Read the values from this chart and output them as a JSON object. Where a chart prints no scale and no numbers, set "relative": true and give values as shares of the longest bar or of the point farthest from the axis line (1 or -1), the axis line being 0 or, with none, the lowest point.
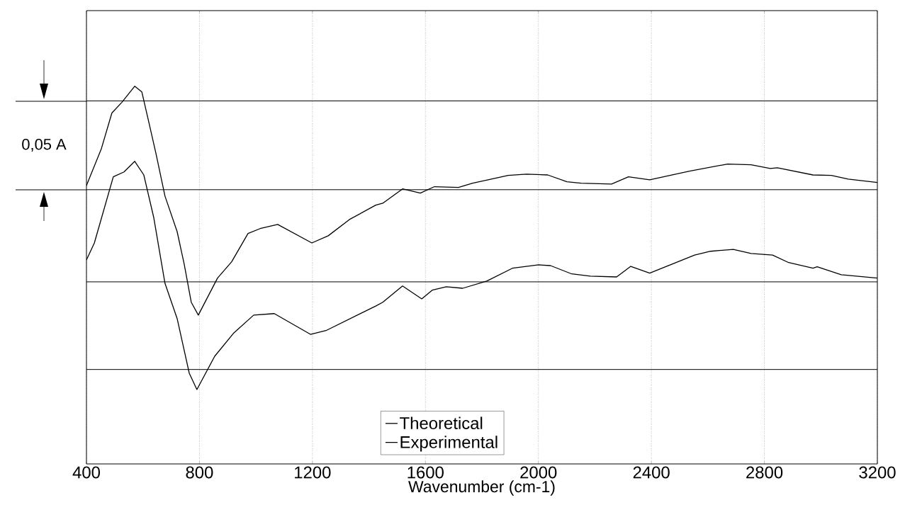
{
  "chart_data": {
    "type": "line",
    "relative": true,
    "xlabel": "Wavenumber (cm-1)",
    "xlim": [
      400,
      3200
    ],
    "xticks": [
      400,
      800,
      1200,
      1600,
      2000,
      2400,
      2800,
      3200
    ],
    "grid": "x",
    "legend": "bottom",
    "annotations": [
      "0,05 A"
    ],
    "ref_lines": [
      {
        "axis": "y",
        "value": 0.961,
        "color": "#000000"
      },
      {
        "axis": "y",
        "value": 0.726,
        "color": "#000000"
      },
      {
        "axis": "y",
        "value": 0.482,
        "color": "#000000"
      },
      {
        "axis": "y",
        "value": 0.25,
        "color": "#000000"
      }
    ],
    "series": [
      {
        "name": "Theoretical",
        "color": "#000000",
        "x": [
          400,
          453,
          490,
          525,
          571,
          596,
          621,
          646,
          678,
          721,
          746,
          771,
          796,
          864,
          914,
          972,
          1015,
          1077,
          1198,
          1256,
          1331,
          1424,
          1449,
          1519,
          1582,
          1632,
          1717,
          1767,
          1893,
          1958,
          2033,
          2101,
          2151,
          2259,
          2319,
          2394,
          2535,
          2670,
          2753,
          2821,
          2846,
          2972,
          3037,
          3097,
          3200
        ],
        "values": [
          0.737,
          0.835,
          0.929,
          0.957,
          1.0,
          0.985,
          0.904,
          0.822,
          0.709,
          0.615,
          0.529,
          0.428,
          0.394,
          0.492,
          0.535,
          0.61,
          0.623,
          0.634,
          0.585,
          0.604,
          0.647,
          0.685,
          0.69,
          0.728,
          0.717,
          0.734,
          0.732,
          0.743,
          0.764,
          0.767,
          0.765,
          0.747,
          0.743,
          0.741,
          0.76,
          0.752,
          0.775,
          0.794,
          0.792,
          0.782,
          0.784,
          0.765,
          0.764,
          0.754,
          0.745
        ]
      },
      {
        "name": "Experimental",
        "color": "#000000",
        "x": [
          400,
          428,
          495,
          533,
          571,
          603,
          638,
          678,
          721,
          764,
          791,
          854,
          922,
          992,
          1065,
          1193,
          1248,
          1424,
          1449,
          1519,
          1587,
          1624,
          1674,
          1732,
          1817,
          1908,
          2001,
          2043,
          2118,
          2184,
          2277,
          2327,
          2394,
          2553,
          2610,
          2690,
          2753,
          2829,
          2886,
          2972,
          2987,
          3072,
          3200
        ],
        "values": [
          0.54,
          0.585,
          0.76,
          0.773,
          0.801,
          0.765,
          0.653,
          0.478,
          0.385,
          0.24,
          0.197,
          0.285,
          0.347,
          0.394,
          0.398,
          0.343,
          0.353,
          0.418,
          0.428,
          0.471,
          0.437,
          0.46,
          0.469,
          0.465,
          0.484,
          0.518,
          0.527,
          0.525,
          0.503,
          0.497,
          0.495,
          0.523,
          0.505,
          0.553,
          0.563,
          0.568,
          0.557,
          0.553,
          0.533,
          0.518,
          0.522,
          0.501,
          0.492
        ]
      }
    ]
  }
}
